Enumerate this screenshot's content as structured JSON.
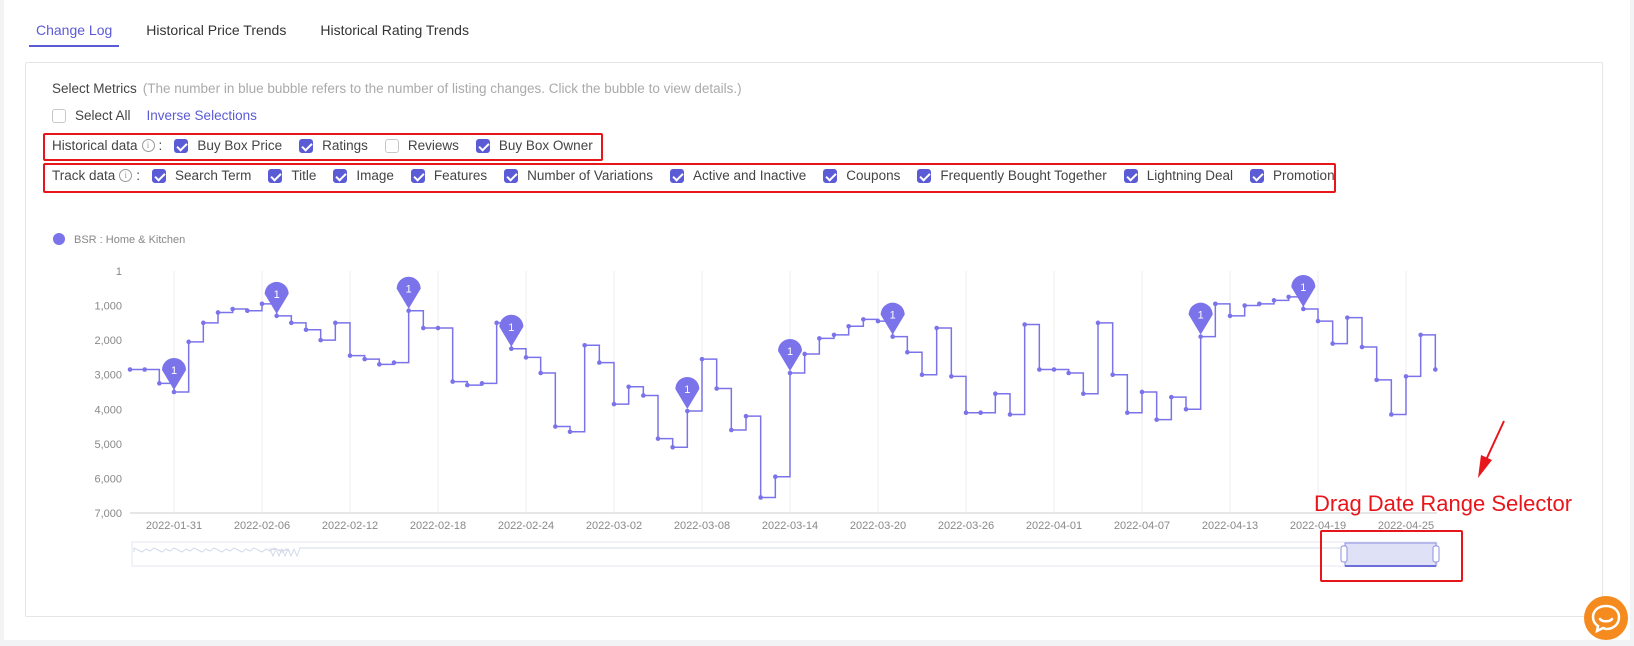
{
  "tabs": [
    {
      "label": "Change Log",
      "active": true
    },
    {
      "label": "Historical Price Trends",
      "active": false
    },
    {
      "label": "Historical Rating Trends",
      "active": false
    }
  ],
  "metrics": {
    "title": "Select Metrics",
    "hint": "(The number in blue bubble refers to the number of listing changes. Click the bubble to view details.)",
    "select_all": {
      "label": "Select All",
      "checked": false
    },
    "inverse_label": "Inverse Selections",
    "historical": {
      "label": "Historical data",
      "options": [
        {
          "label": "Buy Box Price",
          "checked": true
        },
        {
          "label": "Ratings",
          "checked": true
        },
        {
          "label": "Reviews",
          "checked": false
        },
        {
          "label": "Buy Box Owner",
          "checked": true
        }
      ]
    },
    "track": {
      "label": "Track data",
      "options": [
        {
          "label": "Search Term",
          "checked": true
        },
        {
          "label": "Title",
          "checked": true
        },
        {
          "label": "Image",
          "checked": true
        },
        {
          "label": "Features",
          "checked": true
        },
        {
          "label": "Number of Variations",
          "checked": true
        },
        {
          "label": "Active and Inactive",
          "checked": true
        },
        {
          "label": "Coupons",
          "checked": true
        },
        {
          "label": "Frequently Bought Together",
          "checked": true
        },
        {
          "label": "Lightning Deal",
          "checked": true
        },
        {
          "label": "Promotion",
          "checked": true
        }
      ]
    }
  },
  "annotation": {
    "text": "Drag Date Range Selector"
  },
  "colors": {
    "accent": "#5b5bd6",
    "series": "#7b73ea",
    "highlight": "#e8151b",
    "chat": "#f58a1f"
  },
  "chart_data": {
    "type": "line",
    "step": true,
    "legend": [
      "BSR : Home & Kitchen"
    ],
    "y_inverted": true,
    "y_ticks": [
      "1",
      "1,000",
      "2,000",
      "3,000",
      "4,000",
      "5,000",
      "6,000",
      "7,000"
    ],
    "y_range": [
      1,
      7000
    ],
    "x_ticks": [
      "2022-01-31",
      "2022-02-06",
      "2022-02-12",
      "2022-02-18",
      "2022-02-24",
      "2022-03-02",
      "2022-03-08",
      "2022-03-14",
      "2022-03-20",
      "2022-03-26",
      "2022-04-01",
      "2022-04-07",
      "2022-04-13",
      "2022-04-19",
      "2022-04-25"
    ],
    "series": [
      {
        "name": "BSR : Home & Kitchen",
        "points": [
          [
            "2022-01-28",
            2850
          ],
          [
            "2022-01-29",
            2850
          ],
          [
            "2022-01-30",
            3250
          ],
          [
            "2022-01-31",
            3500
          ],
          [
            "2022-02-01",
            2050
          ],
          [
            "2022-02-02",
            1500
          ],
          [
            "2022-02-03",
            1200
          ],
          [
            "2022-02-04",
            1100
          ],
          [
            "2022-02-05",
            1150
          ],
          [
            "2022-02-06",
            950
          ],
          [
            "2022-02-07",
            1300
          ],
          [
            "2022-02-08",
            1500
          ],
          [
            "2022-02-09",
            1700
          ],
          [
            "2022-02-10",
            2000
          ],
          [
            "2022-02-11",
            1500
          ],
          [
            "2022-02-12",
            2450
          ],
          [
            "2022-02-13",
            2550
          ],
          [
            "2022-02-14",
            2700
          ],
          [
            "2022-02-15",
            2650
          ],
          [
            "2022-02-16",
            1150
          ],
          [
            "2022-02-17",
            1650
          ],
          [
            "2022-02-18",
            1650
          ],
          [
            "2022-02-19",
            3200
          ],
          [
            "2022-02-20",
            3300
          ],
          [
            "2022-02-21",
            3250
          ],
          [
            "2022-02-22",
            1500
          ],
          [
            "2022-02-23",
            2250
          ],
          [
            "2022-02-24",
            2500
          ],
          [
            "2022-02-25",
            2950
          ],
          [
            "2022-02-26",
            4500
          ],
          [
            "2022-02-27",
            4650
          ],
          [
            "2022-02-28",
            2150
          ],
          [
            "2022-03-01",
            2650
          ],
          [
            "2022-03-02",
            3850
          ],
          [
            "2022-03-03",
            3350
          ],
          [
            "2022-03-04",
            3600
          ],
          [
            "2022-03-05",
            4850
          ],
          [
            "2022-03-06",
            5100
          ],
          [
            "2022-03-07",
            4050
          ],
          [
            "2022-03-08",
            2550
          ],
          [
            "2022-03-09",
            3400
          ],
          [
            "2022-03-10",
            4600
          ],
          [
            "2022-03-11",
            4200
          ],
          [
            "2022-03-12",
            6550
          ],
          [
            "2022-03-13",
            5950
          ],
          [
            "2022-03-14",
            2950
          ],
          [
            "2022-03-15",
            2400
          ],
          [
            "2022-03-16",
            1950
          ],
          [
            "2022-03-17",
            1850
          ],
          [
            "2022-03-18",
            1600
          ],
          [
            "2022-03-19",
            1400
          ],
          [
            "2022-03-20",
            1450
          ],
          [
            "2022-03-21",
            1900
          ],
          [
            "2022-03-22",
            2350
          ],
          [
            "2022-03-23",
            3000
          ],
          [
            "2022-03-24",
            1650
          ],
          [
            "2022-03-25",
            3050
          ],
          [
            "2022-03-26",
            4100
          ],
          [
            "2022-03-27",
            4100
          ],
          [
            "2022-03-28",
            3550
          ],
          [
            "2022-03-29",
            4150
          ],
          [
            "2022-03-30",
            1550
          ],
          [
            "2022-03-31",
            2850
          ],
          [
            "2022-04-01",
            2850
          ],
          [
            "2022-04-02",
            2950
          ],
          [
            "2022-04-03",
            3550
          ],
          [
            "2022-04-04",
            1500
          ],
          [
            "2022-04-05",
            3000
          ],
          [
            "2022-04-06",
            4100
          ],
          [
            "2022-04-07",
            3500
          ],
          [
            "2022-04-08",
            4300
          ],
          [
            "2022-04-09",
            3650
          ],
          [
            "2022-04-10",
            4000
          ],
          [
            "2022-04-11",
            1900
          ],
          [
            "2022-04-12",
            950
          ],
          [
            "2022-04-13",
            1300
          ],
          [
            "2022-04-14",
            1000
          ],
          [
            "2022-04-15",
            950
          ],
          [
            "2022-04-16",
            850
          ],
          [
            "2022-04-17",
            750
          ],
          [
            "2022-04-18",
            1100
          ],
          [
            "2022-04-19",
            1450
          ],
          [
            "2022-04-20",
            2100
          ],
          [
            "2022-04-21",
            1350
          ],
          [
            "2022-04-22",
            2200
          ],
          [
            "2022-04-23",
            3150
          ],
          [
            "2022-04-24",
            4150
          ],
          [
            "2022-04-25",
            3050
          ],
          [
            "2022-04-26",
            1850
          ],
          [
            "2022-04-27",
            2850
          ]
        ]
      }
    ],
    "markers": [
      {
        "date": "2022-01-31",
        "value": 3500,
        "count": "1"
      },
      {
        "date": "2022-02-07",
        "value": 1300,
        "count": "1"
      },
      {
        "date": "2022-02-16",
        "value": 1150,
        "count": "1"
      },
      {
        "date": "2022-02-23",
        "value": 2250,
        "count": "1"
      },
      {
        "date": "2022-03-07",
        "value": 4050,
        "count": "1"
      },
      {
        "date": "2022-03-14",
        "value": 2950,
        "count": "1"
      },
      {
        "date": "2022-03-21",
        "value": 1900,
        "count": "1"
      },
      {
        "date": "2022-04-11",
        "value": 1900,
        "count": "1"
      },
      {
        "date": "2022-04-18",
        "value": 1100,
        "count": "1"
      }
    ]
  }
}
